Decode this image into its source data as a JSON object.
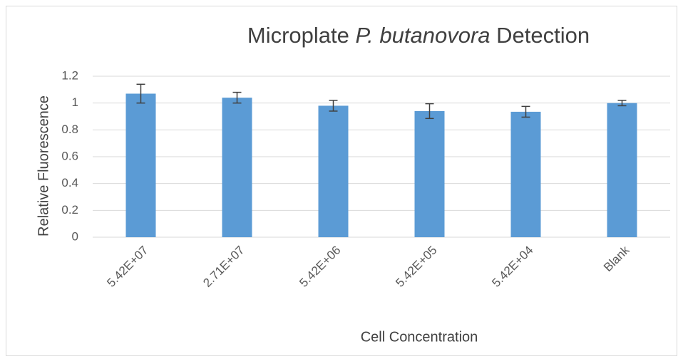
{
  "chart_data": {
    "type": "bar",
    "title": [
      "Microplate",
      "P. butanovora",
      "Detection"
    ],
    "title_italic": [
      false,
      true,
      false
    ],
    "x_label": "Cell Concentration",
    "y_label": "Relative Fluorescence",
    "categories": [
      "5.42E+07",
      "2.71E+07",
      "5.42E+06",
      "5.42E+05",
      "5.42E+04",
      "Blank"
    ],
    "values": [
      1.07,
      1.04,
      0.98,
      0.94,
      0.935,
      1.0
    ],
    "errors": [
      0.07,
      0.04,
      0.04,
      0.055,
      0.04,
      0.02
    ],
    "color": "#5b9bd5",
    "error_color": "#404040",
    "ylim": [
      0,
      1.2
    ],
    "yticks": [
      0,
      0.2,
      0.4,
      0.6,
      0.8,
      1,
      1.2
    ],
    "grid": true
  }
}
